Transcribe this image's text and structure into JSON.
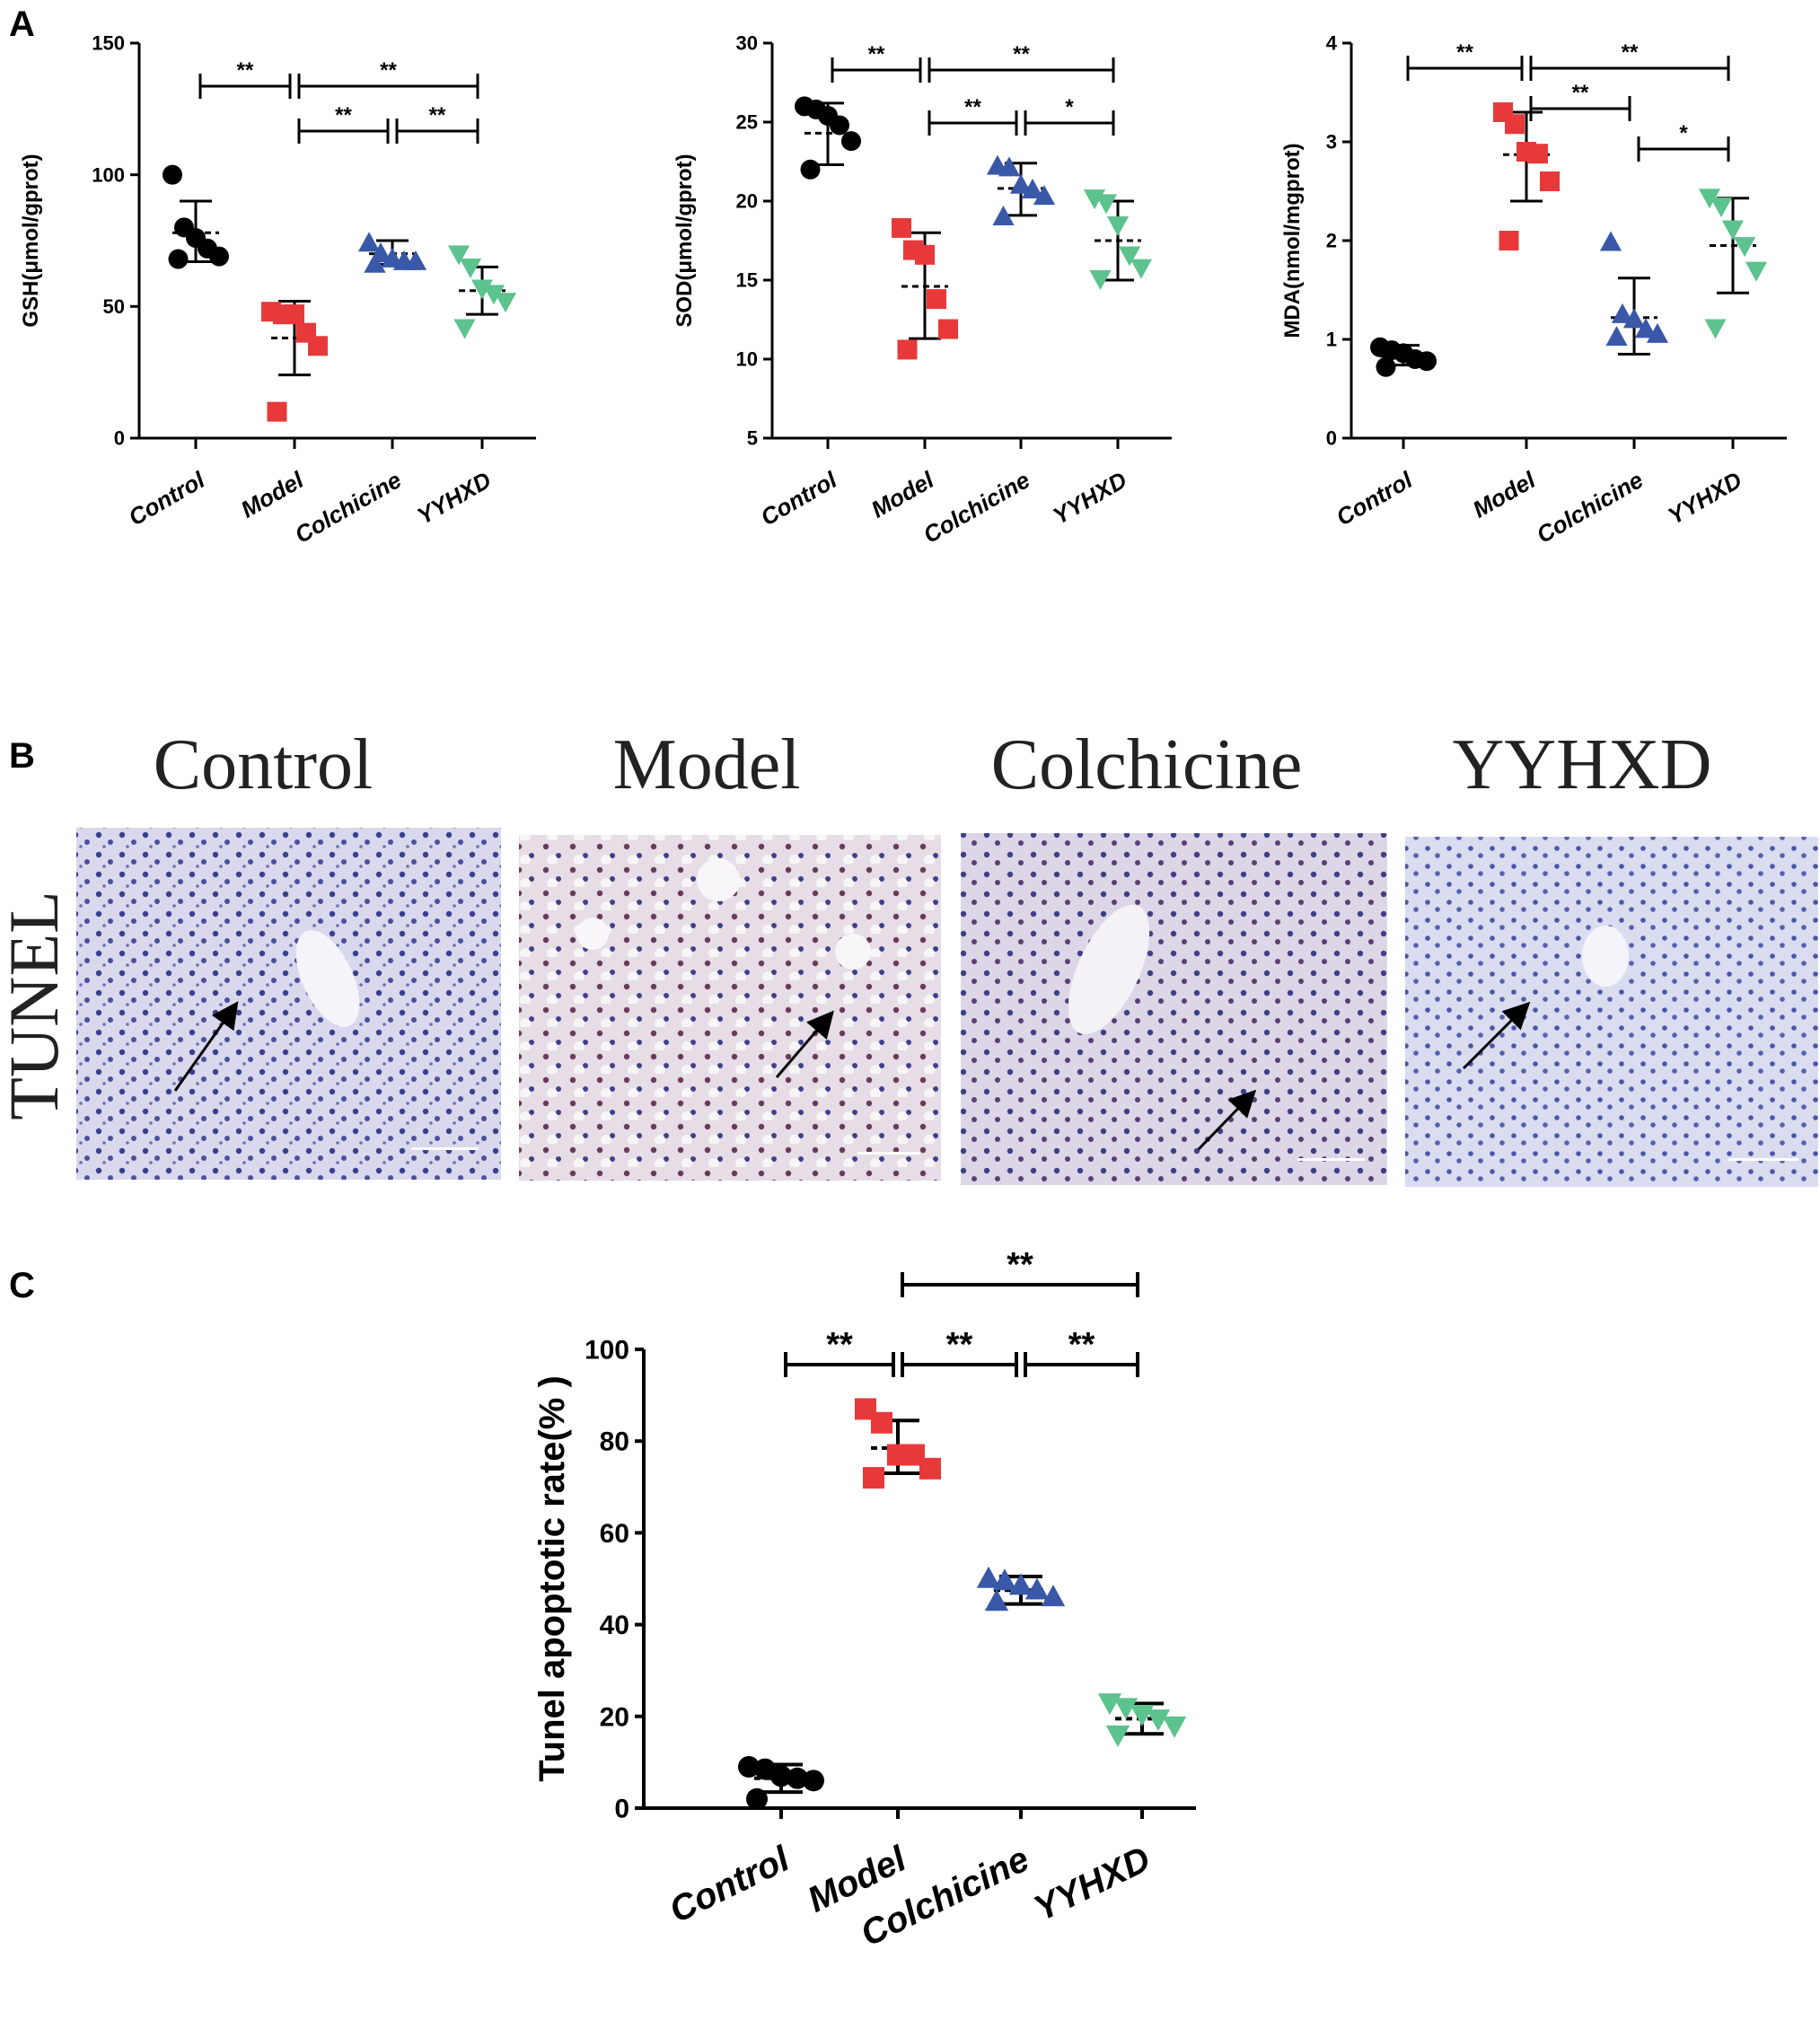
{
  "panels": {
    "A": "A",
    "B": "B",
    "C": "C"
  },
  "colors": {
    "Control": "#000000",
    "Model": "#e8393a",
    "Colchicine": "#3a58a8",
    "YYHXD": "#5cc28e"
  },
  "markers": {
    "Control": "circle",
    "Model": "square",
    "Colchicine": "triangle-up",
    "YYHXD": "triangle-down"
  },
  "chart_data": [
    {
      "id": "gsh",
      "type": "scatter",
      "categories": [
        "Control",
        "Model",
        "Colchicine",
        "YYHXD"
      ],
      "ylabel": "GSH(μmol/gprot)",
      "ylim": [
        0,
        150
      ],
      "yticks": [
        "0",
        "50",
        "100",
        "150"
      ],
      "series": [
        {
          "name": "Control",
          "points": [
            100,
            80,
            76,
            72,
            69,
            68
          ],
          "mean": 78,
          "sd_low": 67,
          "sd_high": 90
        },
        {
          "name": "Model",
          "points": [
            48,
            47,
            47,
            40,
            35,
            10
          ],
          "mean": 38,
          "sd_low": 24,
          "sd_high": 52
        },
        {
          "name": "Colchicine",
          "points": [
            74,
            70,
            68,
            67,
            67,
            66
          ],
          "mean": 70,
          "sd_low": 66,
          "sd_high": 75
        },
        {
          "name": "YYHXD",
          "points": [
            70,
            65,
            57,
            55,
            52,
            42
          ],
          "mean": 56,
          "sd_low": 47,
          "sd_high": 65
        }
      ],
      "significance": [
        {
          "from": 0,
          "to": 1,
          "label": "**",
          "level": 1
        },
        {
          "from": 1,
          "to": 3,
          "label": "**",
          "level": 1
        },
        {
          "from": 1,
          "to": 2,
          "label": "**",
          "level": 0
        },
        {
          "from": 2,
          "to": 3,
          "label": "**",
          "level": 0
        }
      ]
    },
    {
      "id": "sod",
      "type": "scatter",
      "categories": [
        "Control",
        "Model",
        "Colchicine",
        "YYHXD"
      ],
      "ylabel": "SOD(μmol/gprot)",
      "ylim": [
        5,
        30
      ],
      "yticks": [
        "5",
        "10",
        "15",
        "20",
        "25",
        "30"
      ],
      "series": [
        {
          "name": "Control",
          "points": [
            26,
            25.8,
            25.4,
            24.8,
            23.8,
            22.0
          ],
          "mean": 24.3,
          "sd_low": 22.3,
          "sd_high": 26.2
        },
        {
          "name": "Model",
          "points": [
            18.3,
            16.9,
            16.6,
            13.8,
            11.9,
            10.6
          ],
          "mean": 14.6,
          "sd_low": 11.3,
          "sd_high": 18.0
        },
        {
          "name": "Colchicine",
          "points": [
            22.2,
            22.1,
            21.0,
            20.7,
            20.3,
            19.0
          ],
          "mean": 20.8,
          "sd_low": 19.1,
          "sd_high": 22.4
        },
        {
          "name": "YYHXD",
          "points": [
            20.2,
            19.9,
            18.5,
            16.6,
            15.8,
            15.1
          ],
          "mean": 17.5,
          "sd_low": 15.0,
          "sd_high": 20.0
        }
      ],
      "significance": [
        {
          "from": 0,
          "to": 1,
          "label": "**",
          "level": 1
        },
        {
          "from": 1,
          "to": 3,
          "label": "**",
          "level": 1
        },
        {
          "from": 1,
          "to": 2,
          "label": "**",
          "level": 0
        },
        {
          "from": 2,
          "to": 3,
          "label": "*",
          "level": 0
        }
      ]
    },
    {
      "id": "mda",
      "type": "scatter",
      "categories": [
        "Control",
        "Model",
        "Colchicine",
        "YYHXD"
      ],
      "ylabel": "MDA(nmol/mgprot)",
      "ylim": [
        0,
        4
      ],
      "yticks": [
        "0",
        "1",
        "2",
        "3",
        "4"
      ],
      "series": [
        {
          "name": "Control",
          "points": [
            0.92,
            0.89,
            0.86,
            0.8,
            0.78,
            0.72
          ],
          "mean": 0.83,
          "sd_low": 0.74,
          "sd_high": 0.94
        },
        {
          "name": "Model",
          "points": [
            3.3,
            3.18,
            2.9,
            2.88,
            2.6,
            2.0
          ],
          "mean": 2.87,
          "sd_low": 2.4,
          "sd_high": 3.3
        },
        {
          "name": "Colchicine",
          "points": [
            1.98,
            1.25,
            1.2,
            1.1,
            1.05,
            1.02
          ],
          "mean": 1.22,
          "sd_low": 0.85,
          "sd_high": 1.62
        },
        {
          "name": "YYHXD",
          "points": [
            2.44,
            2.35,
            2.12,
            1.95,
            1.7,
            1.12
          ],
          "mean": 1.95,
          "sd_low": 1.47,
          "sd_high": 2.43
        }
      ],
      "significance": [
        {
          "from": 0,
          "to": 1,
          "label": "**",
          "level": 2
        },
        {
          "from": 1,
          "to": 3,
          "label": "**",
          "level": 2
        },
        {
          "from": 1,
          "to": 2,
          "label": "**",
          "level": 1
        },
        {
          "from": 2,
          "to": 3,
          "label": "*",
          "level": 0
        }
      ]
    },
    {
      "id": "tunel",
      "type": "scatter",
      "categories": [
        "Control",
        "Model",
        "Colchicine",
        "YYHXD"
      ],
      "ylabel": "Tunel apoptotic rate(% )",
      "ylim": [
        0,
        100
      ],
      "yticks": [
        "0",
        "20",
        "40",
        "60",
        "80",
        "100"
      ],
      "series": [
        {
          "name": "Control",
          "points": [
            9,
            8.5,
            7,
            6.5,
            6,
            2
          ],
          "mean": 6.5,
          "sd_low": 3.5,
          "sd_high": 9.5
        },
        {
          "name": "Model",
          "points": [
            87,
            84,
            77,
            77,
            74,
            72
          ],
          "mean": 78.5,
          "sd_low": 73,
          "sd_high": 84.5
        },
        {
          "name": "Colchicine",
          "points": [
            50,
            49.5,
            48.5,
            47.5,
            46,
            45
          ],
          "mean": 47.5,
          "sd_low": 44.5,
          "sd_high": 50.5
        },
        {
          "name": "YYHXD",
          "points": [
            23,
            22,
            20.5,
            19.5,
            18,
            16
          ],
          "mean": 19.5,
          "sd_low": 16.2,
          "sd_high": 22.8
        }
      ],
      "significance": [
        {
          "from": 0,
          "to": 1,
          "label": "**",
          "level": 0
        },
        {
          "from": 1,
          "to": 2,
          "label": "**",
          "level": 0
        },
        {
          "from": 2,
          "to": 3,
          "label": "**",
          "level": 0
        },
        {
          "from": 1,
          "to": 3,
          "label": "**",
          "level": 1
        }
      ]
    }
  ],
  "histology": {
    "row_label": "TUNEL",
    "columns": [
      "Control",
      "Model",
      "Colchicine",
      "YYHXD"
    ]
  }
}
